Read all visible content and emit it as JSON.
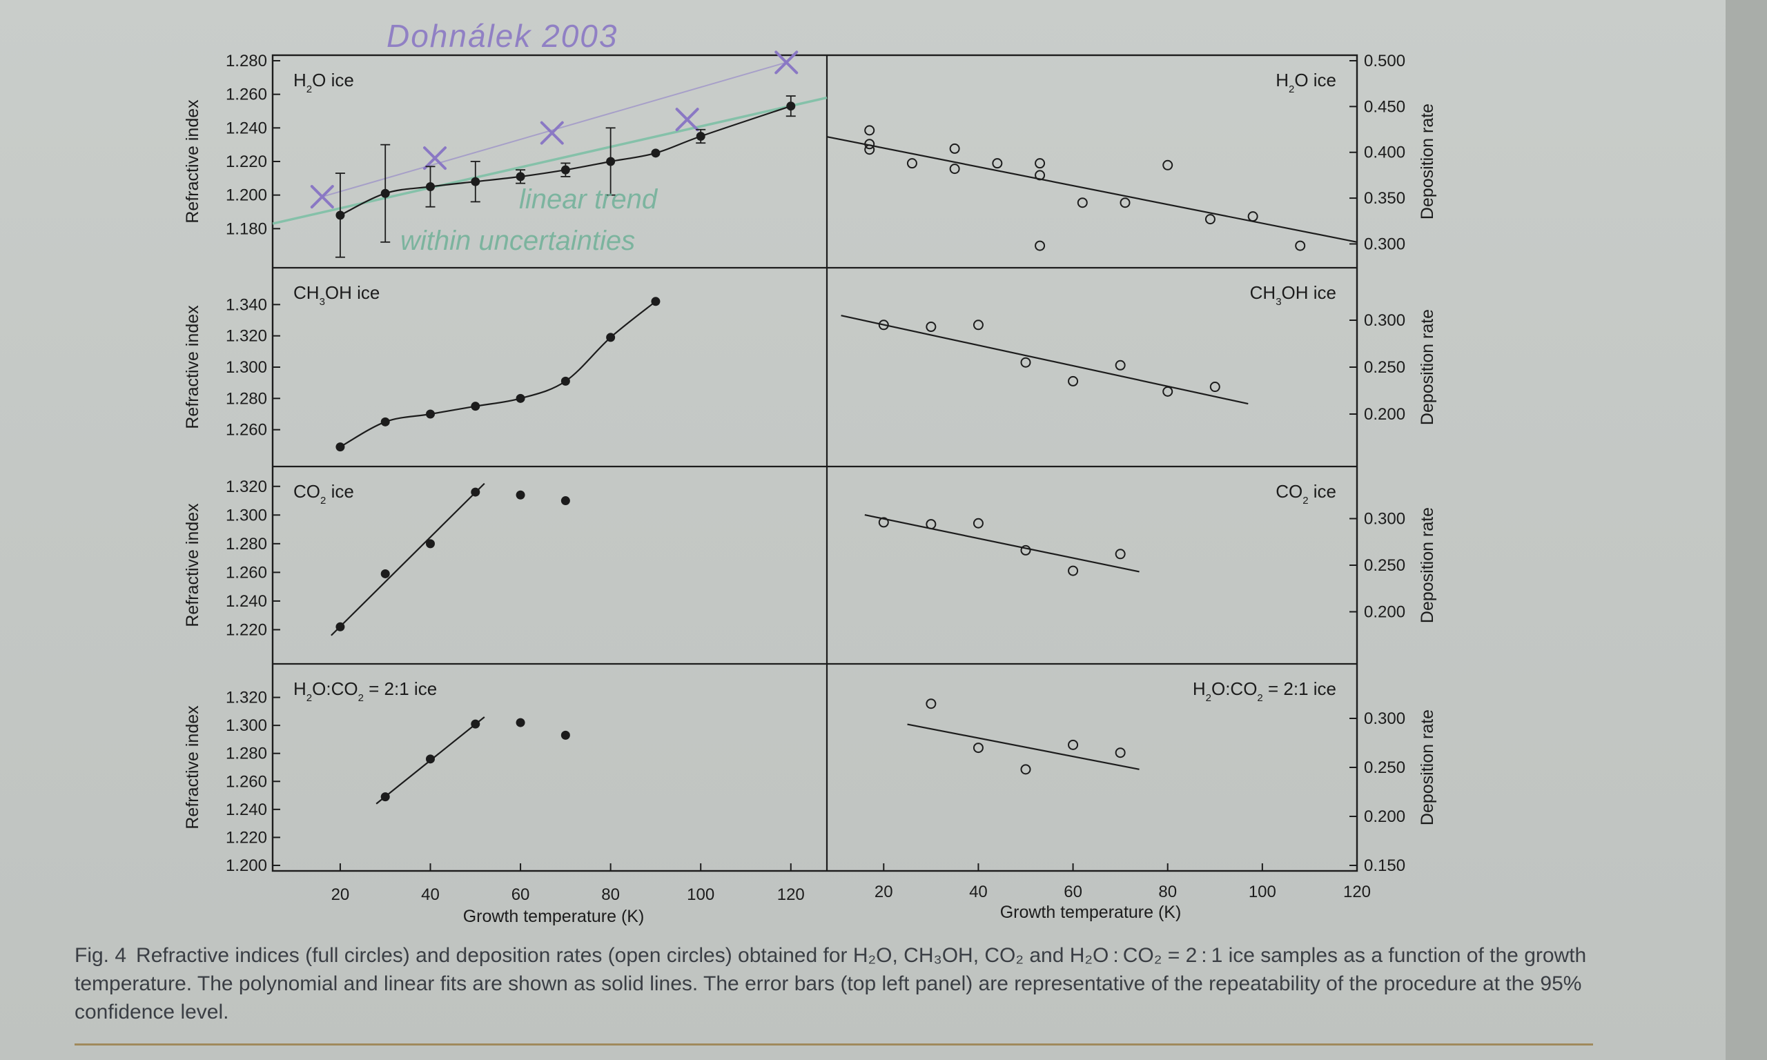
{
  "caption": {
    "label": "Fig. 4",
    "text": "Refractive indices (full circles) and deposition rates (open circles) obtained for H₂O, CH₃OH, CO₂ and H₂O : CO₂ = 2 : 1 ice samples as a function of the growth temperature. The polynomial and linear fits are shown as solid lines. The error bars (top left panel) are representative of the repeatability of the procedure at the 95% confidence level."
  },
  "handwritten": {
    "top": "Dohnálek 2003",
    "line1": "linear trend",
    "line2": "within uncertainties",
    "ink_purple": "#8a78c4",
    "ink_green": "#6fb098"
  },
  "colors": {
    "ink": "#1c1c1c",
    "annotation_line": "#9c91c9",
    "trend_line": "#7ec0a6"
  },
  "axes": {
    "xlabel_left": "Growth temperature (K)",
    "xlabel_right": "Growth temperature (K)",
    "x_ticks_left": [
      20,
      40,
      60,
      80,
      100,
      120
    ],
    "x_ticks_right": [
      20,
      40,
      60,
      80,
      100,
      120
    ],
    "ylabel_left": "Refractive index",
    "ylabel_right": "Deposition rate"
  },
  "chart_data": [
    {
      "type": "line",
      "panel": "left-1",
      "title": "H₂O ice",
      "xlim": [
        5,
        128
      ],
      "ylim": [
        1.16,
        1.28
      ],
      "yticks": [
        "1.180",
        "1.200",
        "1.220",
        "1.240",
        "1.260",
        "1.280"
      ],
      "series": [
        {
          "marker": "filled-circle",
          "x": [
            20,
            30,
            40,
            50,
            60,
            70,
            80,
            90,
            100,
            120
          ],
          "y": [
            1.188,
            1.201,
            1.205,
            1.208,
            1.211,
            1.215,
            1.22,
            1.225,
            1.235,
            1.253
          ],
          "err": [
            0.025,
            0.029,
            0.012,
            0.012,
            0.004,
            0.004,
            0.02,
            0.0,
            0.004,
            0.006
          ]
        }
      ],
      "annotation_points": {
        "x": [
          16,
          41,
          67,
          97,
          119
        ],
        "y": [
          1.199,
          1.222,
          1.237,
          1.245,
          1.279
        ]
      },
      "annotation_trend": {
        "x": [
          5,
          128
        ],
        "y": [
          1.183,
          1.258
        ]
      }
    },
    {
      "type": "scatter",
      "panel": "right-1",
      "title": "H₂O ice",
      "xlim": [
        8,
        120
      ],
      "ylim": [
        0.28,
        0.5
      ],
      "yticks": [
        "0.300",
        "0.350",
        "0.400",
        "0.450",
        "0.500"
      ],
      "series": [
        {
          "marker": "open-circle",
          "x": [
            17,
            17,
            17,
            26,
            35,
            35,
            44,
            53,
            53,
            53,
            62,
            71,
            80,
            89,
            98,
            108
          ],
          "y": [
            0.424,
            0.409,
            0.403,
            0.388,
            0.404,
            0.382,
            0.388,
            0.388,
            0.375,
            0.298,
            0.345,
            0.345,
            0.386,
            0.327,
            0.33,
            0.298
          ]
        }
      ],
      "fit": {
        "x": [
          8,
          120
        ],
        "y": [
          0.417,
          0.302
        ]
      }
    },
    {
      "type": "line",
      "panel": "left-2",
      "title": "CH₃OH ice",
      "xlim": [
        5,
        128
      ],
      "ylim": [
        1.24,
        1.36
      ],
      "yticks": [
        "1.260",
        "1.280",
        "1.300",
        "1.320",
        "1.340"
      ],
      "series": [
        {
          "marker": "filled-circle",
          "x": [
            20,
            30,
            40,
            50,
            60,
            70,
            80,
            90
          ],
          "y": [
            1.249,
            1.265,
            1.27,
            1.275,
            1.28,
            1.291,
            1.319,
            1.342
          ]
        }
      ]
    },
    {
      "type": "scatter",
      "panel": "right-2",
      "title": "CH₃OH ice",
      "xlim": [
        8,
        120
      ],
      "ylim": [
        0.15,
        0.35
      ],
      "yticks": [
        "0.200",
        "0.250",
        "0.300"
      ],
      "series": [
        {
          "marker": "open-circle",
          "x": [
            20,
            30,
            40,
            50,
            60,
            70,
            80,
            90
          ],
          "y": [
            0.295,
            0.293,
            0.295,
            0.255,
            0.235,
            0.252,
            0.224,
            0.229
          ]
        }
      ],
      "fit": {
        "x": [
          11,
          97
        ],
        "y": [
          0.305,
          0.211
        ]
      }
    },
    {
      "type": "line",
      "panel": "left-3",
      "title": "CO₂ ice",
      "xlim": [
        5,
        128
      ],
      "ylim": [
        1.2,
        1.33
      ],
      "yticks": [
        "1.220",
        "1.240",
        "1.260",
        "1.280",
        "1.300",
        "1.320"
      ],
      "series": [
        {
          "marker": "filled-circle",
          "x": [
            20,
            30,
            40,
            50,
            60,
            70
          ],
          "y": [
            1.222,
            1.259,
            1.28,
            1.316,
            1.314,
            1.31
          ]
        }
      ],
      "fit": {
        "x": [
          18,
          52
        ],
        "y": [
          1.216,
          1.322
        ]
      }
    },
    {
      "type": "scatter",
      "panel": "right-3",
      "title": "CO₂ ice",
      "xlim": [
        8,
        120
      ],
      "ylim": [
        0.15,
        0.35
      ],
      "yticks": [
        "0.200",
        "0.250",
        "0.300"
      ],
      "series": [
        {
          "marker": "open-circle",
          "x": [
            20,
            30,
            40,
            50,
            60,
            70
          ],
          "y": [
            0.296,
            0.294,
            0.295,
            0.266,
            0.244,
            0.262
          ]
        }
      ],
      "fit": {
        "x": [
          16,
          74
        ],
        "y": [
          0.304,
          0.243
        ]
      }
    },
    {
      "type": "line",
      "panel": "left-4",
      "title": "H₂O:CO₂ = 2:1 ice",
      "xlim": [
        5,
        128
      ],
      "ylim": [
        1.2,
        1.34
      ],
      "yticks": [
        "1.200",
        "1.220",
        "1.240",
        "1.260",
        "1.280",
        "1.300",
        "1.320"
      ],
      "series": [
        {
          "marker": "filled-circle",
          "x": [
            30,
            40,
            50,
            60,
            70
          ],
          "y": [
            1.249,
            1.276,
            1.301,
            1.302,
            1.293
          ]
        }
      ],
      "fit": {
        "x": [
          28,
          52
        ],
        "y": [
          1.244,
          1.306
        ]
      }
    },
    {
      "type": "scatter",
      "panel": "right-4",
      "title": "H₂O:CO₂ = 2:1 ice",
      "xlim": [
        8,
        120
      ],
      "ylim": [
        0.15,
        0.35
      ],
      "yticks": [
        "0.150",
        "0.200",
        "0.250",
        "0.300"
      ],
      "series": [
        {
          "marker": "open-circle",
          "x": [
            30,
            40,
            50,
            60,
            70
          ],
          "y": [
            0.315,
            0.27,
            0.248,
            0.273,
            0.265
          ]
        }
      ],
      "fit": {
        "x": [
          25,
          74
        ],
        "y": [
          0.294,
          0.248
        ]
      }
    }
  ]
}
